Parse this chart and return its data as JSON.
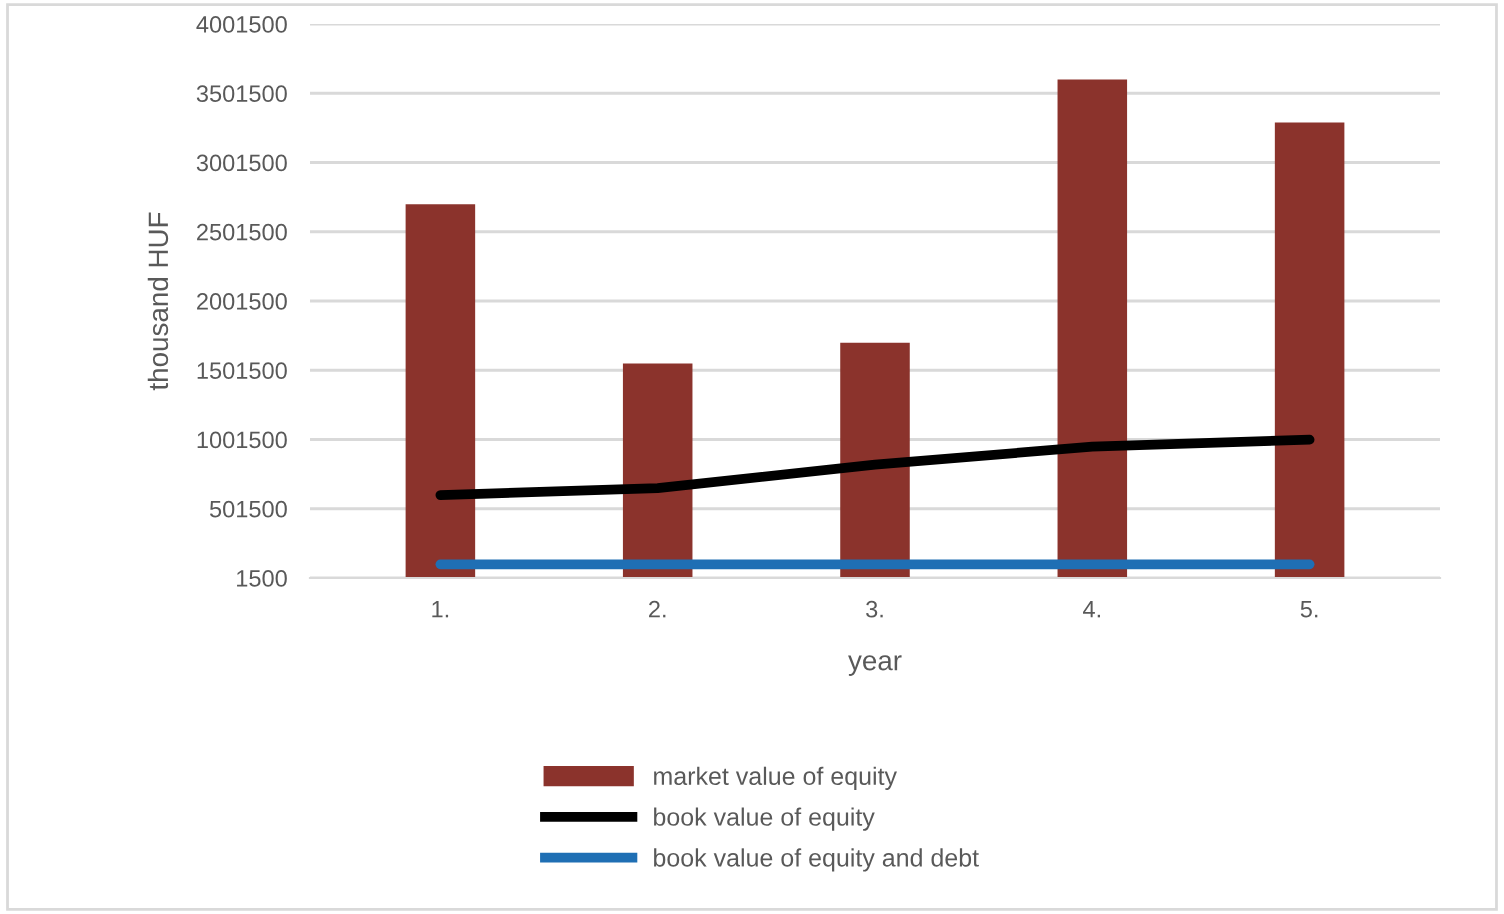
{
  "chart_data": {
    "type": "bar",
    "xlabel": "year",
    "ylabel": "thousand HUF",
    "categories": [
      "1.",
      "2.",
      "3.",
      "4.",
      "5."
    ],
    "series": [
      {
        "name": "market value of equity",
        "color": "#8b332c",
        "values": [
          2700000,
          1550000,
          1700000,
          3600000,
          3290000
        ]
      },
      {
        "name": "book value of equity",
        "type": "line",
        "color": "#000000",
        "values": [
          600000,
          650000,
          820000,
          950000,
          1000000
        ]
      },
      {
        "name": "book value of equity and debt",
        "type": "line",
        "color": "#1f6fb4",
        "values": [
          100000,
          100000,
          100000,
          100000,
          100000
        ]
      }
    ],
    "ylim": [
      1500,
      4001500
    ],
    "yticks": [
      1500,
      501500,
      1001500,
      1501500,
      2001500,
      2501500,
      3001500,
      3501500,
      4001500
    ],
    "grid": "y",
    "legend": "bottom",
    "line_style": "solid",
    "marker": "none"
  }
}
